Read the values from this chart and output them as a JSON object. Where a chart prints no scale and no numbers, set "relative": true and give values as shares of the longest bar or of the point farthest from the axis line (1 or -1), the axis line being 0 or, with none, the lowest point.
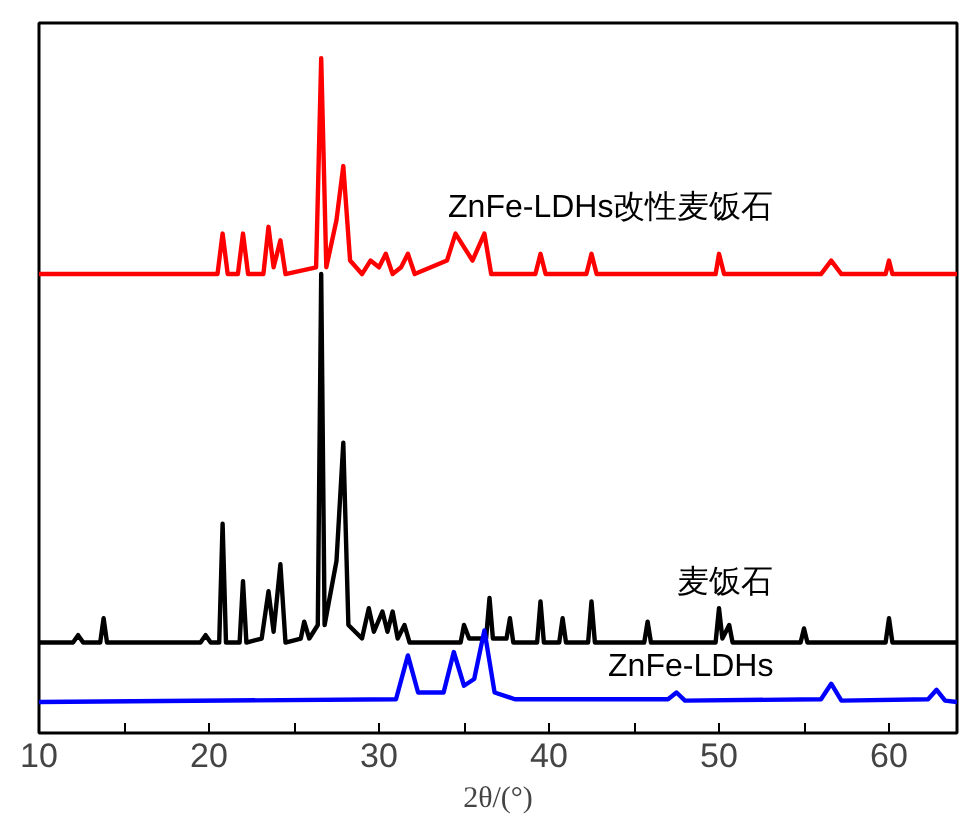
{
  "chart_data": {
    "type": "line",
    "relative": true,
    "xlabel": "2θ/(°)",
    "xlim": [
      10,
      64
    ],
    "xticks": [
      10,
      {
        "value": 15,
        "label": null
      },
      20,
      {
        "value": 25,
        "label": null
      },
      30,
      {
        "value": 35,
        "label": null
      },
      40,
      {
        "value": 45,
        "label": null
      },
      50,
      {
        "value": 55,
        "label": null
      },
      60
    ],
    "grid": false,
    "legend": false,
    "marker": "none",
    "line_style": "solid",
    "series": [
      {
        "name": "ZnFe-LDHs改性麦饭石",
        "color": "#ff0000",
        "x": [
          10,
          20.5,
          20.8,
          21.1,
          21.7,
          22,
          22.3,
          23.2,
          23.5,
          23.8,
          24.2,
          24.5,
          26.3,
          26.6,
          26.9,
          27.5,
          27.9,
          28.3,
          29.0,
          29.5,
          30.0,
          30.4,
          30.8,
          31.3,
          31.7,
          32.1,
          34.0,
          34.5,
          35.0,
          35.5,
          36.2,
          36.6,
          39.2,
          39.5,
          39.8,
          42.2,
          42.5,
          42.8,
          49.8,
          50,
          50.3,
          56,
          56.6,
          57.2,
          59.8,
          60,
          60.2,
          64
        ],
        "values": [
          0.68,
          0.68,
          0.74,
          0.68,
          0.68,
          0.74,
          0.68,
          0.68,
          0.75,
          0.69,
          0.73,
          0.68,
          0.69,
          1.0,
          0.69,
          0.76,
          0.84,
          0.7,
          0.68,
          0.7,
          0.69,
          0.71,
          0.68,
          0.69,
          0.71,
          0.68,
          0.7,
          0.74,
          0.72,
          0.7,
          0.74,
          0.68,
          0.68,
          0.71,
          0.68,
          0.68,
          0.71,
          0.68,
          0.68,
          0.71,
          0.68,
          0.68,
          0.7,
          0.68,
          0.68,
          0.7,
          0.68,
          0.68
        ]
      },
      {
        "name": "麦饭石",
        "color": "#000000",
        "x": [
          10,
          12.0,
          12.3,
          12.6,
          13.6,
          13.8,
          14.0,
          19.5,
          19.8,
          20.1,
          20.6,
          20.8,
          21.0,
          21.8,
          22.0,
          22.2,
          23.1,
          23.5,
          23.8,
          24.2,
          24.5,
          25.4,
          25.6,
          25.9,
          26.4,
          26.6,
          26.8,
          27.5,
          27.9,
          28.2,
          29.0,
          29.4,
          29.7,
          30.2,
          30.5,
          30.8,
          31.1,
          31.5,
          31.8,
          34.8,
          35.0,
          35.3,
          36.3,
          36.5,
          36.7,
          37.5,
          37.7,
          37.9,
          39.3,
          39.5,
          39.7,
          40.6,
          40.8,
          41.0,
          42.3,
          42.5,
          42.7,
          45.6,
          45.8,
          46.0,
          49.8,
          50.0,
          50.2,
          50.6,
          50.8,
          54.8,
          55.0,
          55.2,
          59.8,
          60.0,
          60.2,
          64
        ],
        "values": [
          0.134,
          0.134,
          0.145,
          0.134,
          0.134,
          0.17,
          0.134,
          0.134,
          0.145,
          0.134,
          0.134,
          0.31,
          0.134,
          0.134,
          0.225,
          0.134,
          0.14,
          0.21,
          0.15,
          0.25,
          0.134,
          0.14,
          0.165,
          0.14,
          0.16,
          0.68,
          0.16,
          0.255,
          0.43,
          0.16,
          0.14,
          0.185,
          0.15,
          0.18,
          0.15,
          0.18,
          0.14,
          0.16,
          0.134,
          0.134,
          0.16,
          0.14,
          0.14,
          0.2,
          0.14,
          0.14,
          0.17,
          0.134,
          0.134,
          0.195,
          0.134,
          0.134,
          0.17,
          0.134,
          0.134,
          0.195,
          0.134,
          0.134,
          0.165,
          0.134,
          0.134,
          0.185,
          0.14,
          0.16,
          0.134,
          0.134,
          0.155,
          0.134,
          0.134,
          0.17,
          0.134,
          0.134
        ]
      },
      {
        "name": "ZnFe-LDHs",
        "color": "#0000ff",
        "x": [
          10,
          31.0,
          31.7,
          32.3,
          33.8,
          34.4,
          35.0,
          35.6,
          36.2,
          36.8,
          38,
          47,
          47.5,
          48,
          56,
          56.6,
          57.2,
          62.3,
          62.8,
          63.3,
          64
        ],
        "values": [
          0.046,
          0.05,
          0.115,
          0.06,
          0.06,
          0.12,
          0.07,
          0.08,
          0.152,
          0.06,
          0.05,
          0.05,
          0.06,
          0.048,
          0.05,
          0.073,
          0.048,
          0.05,
          0.064,
          0.048,
          0.046
        ]
      }
    ]
  }
}
